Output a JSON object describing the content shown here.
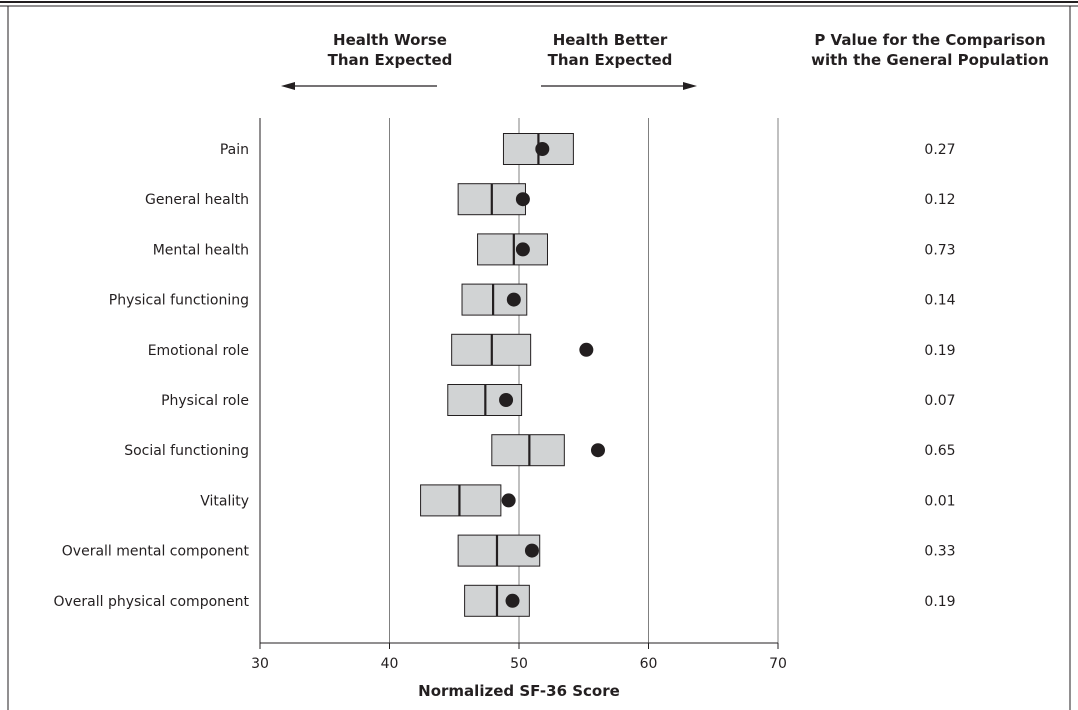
{
  "header": {
    "worse": [
      "Health Worse",
      "Than Expected"
    ],
    "better": [
      "Health Better",
      "Than Expected"
    ],
    "pvalue": [
      "P Value for the Comparison",
      "with the General Population"
    ]
  },
  "colors": {
    "box_fill": "#d1d3d4",
    "box_stroke": "#231f20",
    "point": "#231f20",
    "gridline": "#808080",
    "text": "#231f20"
  },
  "chart_data": {
    "type": "box",
    "title": "",
    "xlabel": "Normalized SF-36 Score",
    "ylabel": "",
    "xlim": [
      30,
      70
    ],
    "xticks": [
      30,
      40,
      50,
      60,
      70
    ],
    "gridlines_at": [
      40,
      50,
      60,
      70
    ],
    "columns": {
      "p_value": "P Value for the Comparison with the General Population"
    },
    "rows": [
      {
        "label": "Pain",
        "q1": 48.8,
        "median": 51.5,
        "q3": 54.2,
        "point": 51.8,
        "p_value": "0.27"
      },
      {
        "label": "General health",
        "q1": 45.3,
        "median": 47.9,
        "q3": 50.5,
        "point": 50.3,
        "p_value": "0.12"
      },
      {
        "label": "Mental health",
        "q1": 46.8,
        "median": 49.6,
        "q3": 52.2,
        "point": 50.3,
        "p_value": "0.73"
      },
      {
        "label": "Physical functioning",
        "q1": 45.6,
        "median": 48.0,
        "q3": 50.6,
        "point": 49.6,
        "p_value": "0.14"
      },
      {
        "label": "Emotional role",
        "q1": 44.8,
        "median": 47.9,
        "q3": 50.9,
        "point": 55.2,
        "p_value": "0.19"
      },
      {
        "label": "Physical role",
        "q1": 44.5,
        "median": 47.4,
        "q3": 50.2,
        "point": 49.0,
        "p_value": "0.07"
      },
      {
        "label": "Social functioning",
        "q1": 47.9,
        "median": 50.8,
        "q3": 53.5,
        "point": 56.1,
        "p_value": "0.65"
      },
      {
        "label": "Vitality",
        "q1": 42.4,
        "median": 45.4,
        "q3": 48.6,
        "point": 49.2,
        "p_value": "0.01"
      },
      {
        "label": "Overall mental component",
        "q1": 45.3,
        "median": 48.3,
        "q3": 51.6,
        "point": 51.0,
        "p_value": "0.33"
      },
      {
        "label": "Overall physical component",
        "q1": 45.8,
        "median": 48.3,
        "q3": 50.8,
        "point": 49.5,
        "p_value": "0.19"
      }
    ]
  }
}
